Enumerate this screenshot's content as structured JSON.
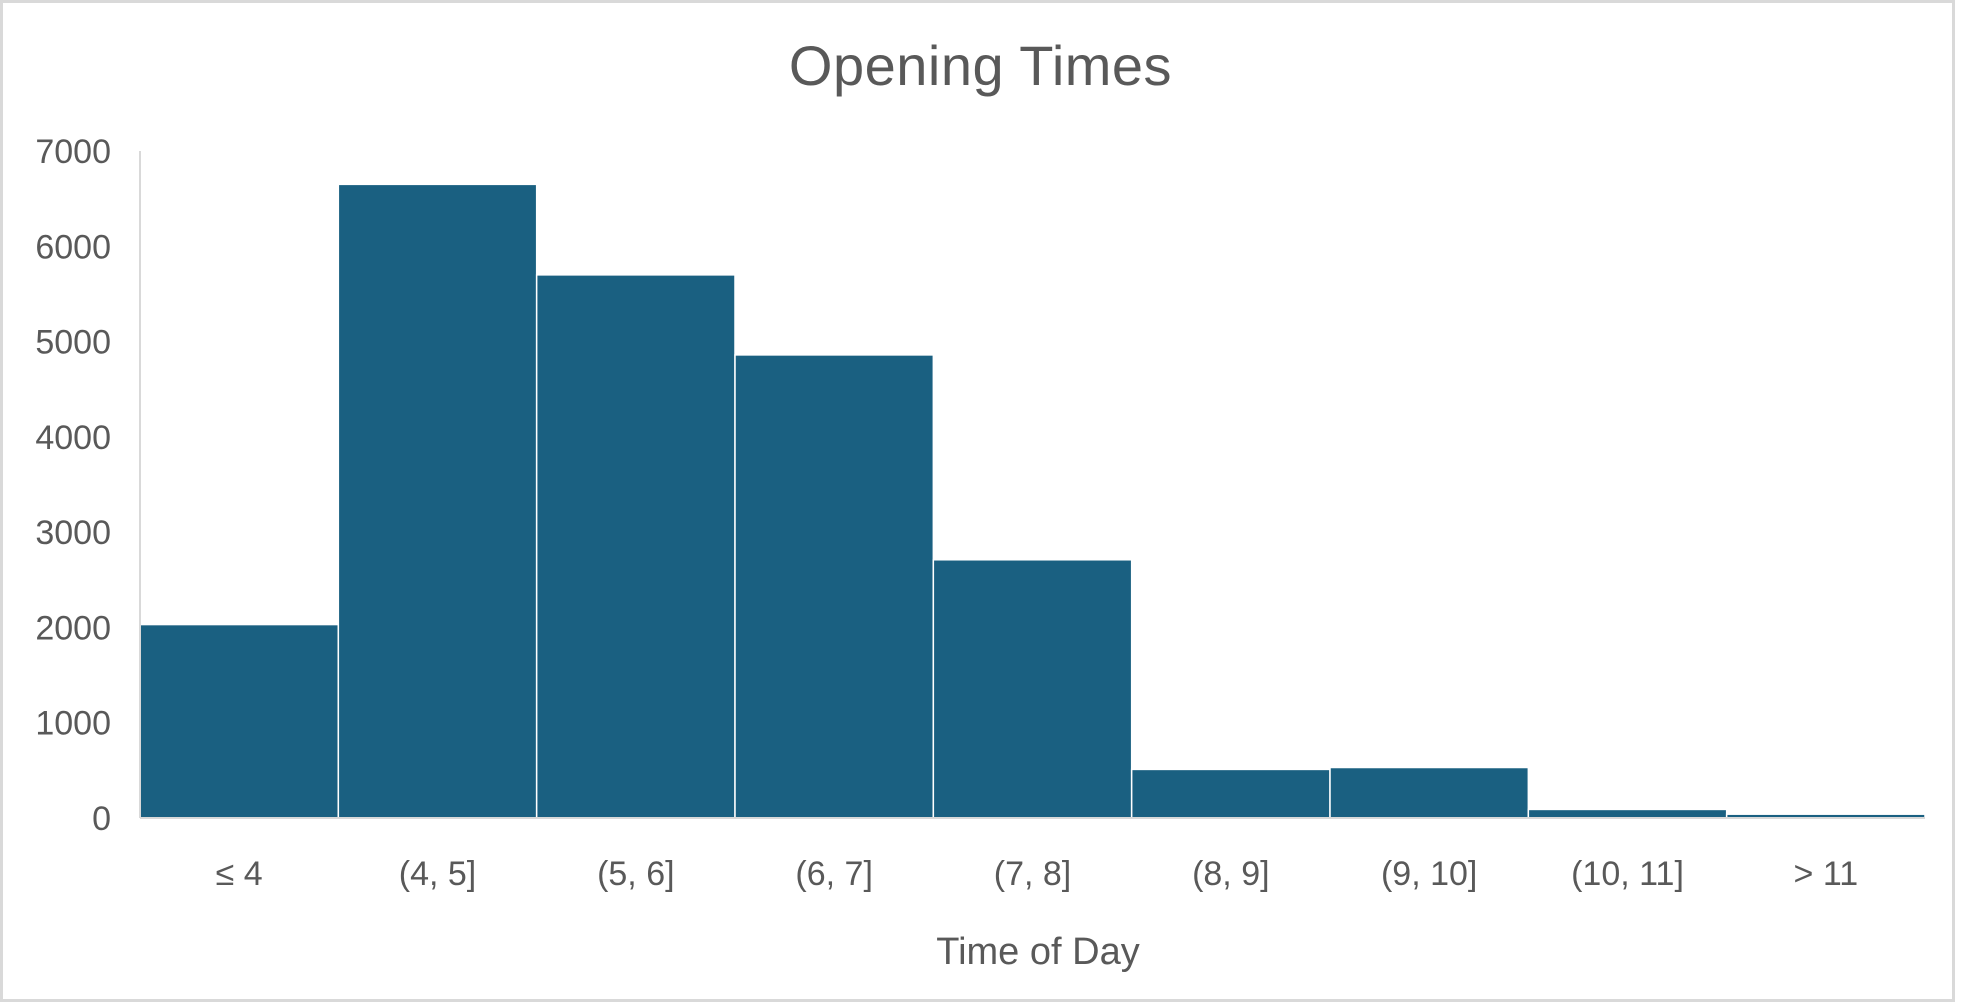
{
  "chart_data": {
    "type": "bar",
    "title": "Opening Times",
    "xlabel": "Time of Day",
    "ylabel": "",
    "categories": [
      "≤ 4",
      "(4, 5]",
      "(5, 6]",
      "(6, 7]",
      "(7, 8]",
      "(8, 9]",
      "(9, 10]",
      "(10, 11]",
      "> 11"
    ],
    "values": [
      2030,
      6650,
      5700,
      4860,
      2710,
      510,
      530,
      90,
      40
    ],
    "ylim": [
      0,
      7000
    ],
    "yticks": [
      "0",
      "1000",
      "2000",
      "3000",
      "4000",
      "5000",
      "6000",
      "7000"
    ],
    "grid": false,
    "legend": "none",
    "colors": {
      "bar": "#1a6081",
      "text": "#595959",
      "axis": "#d9d9d9"
    }
  }
}
